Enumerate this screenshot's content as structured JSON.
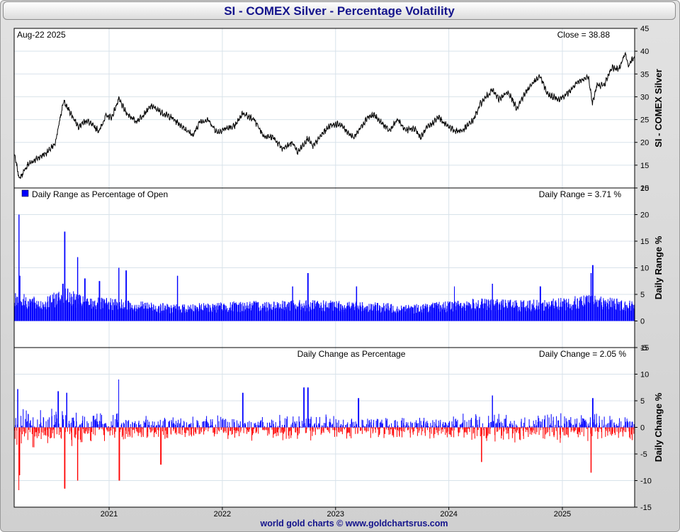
{
  "title": "SI  -  COMEX Silver - Percentage Volatility",
  "footer": "world gold charts © www.goldchartsrus.com",
  "colors": {
    "title": "#14148c",
    "price_line": "#000000",
    "range_bars": "#0000ff",
    "change_up": "#0000ff",
    "change_down": "#ff0000",
    "grid": "#d8e2ea"
  },
  "chart_data": [
    {
      "type": "line",
      "panel": "price",
      "date_label": "Aug-22  2025",
      "readout": "Close = 38.88",
      "ylabel": "SI  -  COMEX Silver",
      "ylim": [
        10,
        45
      ],
      "yticks": [
        10,
        15,
        20,
        25,
        30,
        35,
        40,
        45
      ],
      "xlim": [
        "2020-03-01",
        "2025-08-22"
      ],
      "xticks": [
        "2021",
        "2022",
        "2023",
        "2024",
        "2025"
      ],
      "grid": true,
      "series": [
        {
          "x": [
            "2020-03-01",
            "2020-03-18",
            "2020-04-15",
            "2020-05-15",
            "2020-06-15",
            "2020-07-10",
            "2020-07-28",
            "2020-08-07",
            "2020-08-25",
            "2020-09-24",
            "2020-10-20",
            "2020-11-30",
            "2020-12-21",
            "2021-01-10",
            "2021-02-01",
            "2021-02-25",
            "2021-03-30",
            "2021-05-18",
            "2021-06-20",
            "2021-07-20",
            "2021-08-19",
            "2021-09-29",
            "2021-10-20",
            "2021-11-15",
            "2021-12-15",
            "2022-01-10",
            "2022-02-10",
            "2022-03-08",
            "2022-04-15",
            "2022-05-13",
            "2022-06-15",
            "2022-07-14",
            "2022-08-15",
            "2022-09-01",
            "2022-10-04",
            "2022-10-20",
            "2022-11-15",
            "2022-12-15",
            "2023-01-15",
            "2023-02-28",
            "2023-04-14",
            "2023-05-05",
            "2023-06-23",
            "2023-07-20",
            "2023-08-15",
            "2023-09-15",
            "2023-10-02",
            "2023-10-20",
            "2023-11-30",
            "2023-12-20",
            "2024-01-22",
            "2024-02-15",
            "2024-03-21",
            "2024-04-12",
            "2024-05-20",
            "2024-06-10",
            "2024-07-11",
            "2024-08-07",
            "2024-08-27",
            "2024-09-20",
            "2024-10-22",
            "2024-11-14",
            "2024-12-20",
            "2025-01-15",
            "2025-02-14",
            "2025-03-26",
            "2025-04-08",
            "2025-04-22",
            "2025-05-15",
            "2025-06-10",
            "2025-06-30",
            "2025-07-23",
            "2025-08-01",
            "2025-08-22"
          ],
          "values": [
            17.5,
            12.0,
            15.2,
            16.5,
            17.8,
            19.5,
            25.5,
            29.0,
            27.0,
            23.5,
            24.8,
            22.5,
            25.8,
            25.5,
            29.5,
            26.5,
            24.5,
            28.0,
            26.5,
            25.5,
            23.8,
            21.5,
            24.5,
            25.0,
            22.2,
            23.0,
            23.5,
            26.5,
            24.8,
            21.5,
            21.0,
            18.5,
            20.0,
            17.8,
            21.0,
            19.0,
            21.5,
            23.8,
            24.0,
            21.0,
            25.5,
            26.0,
            22.5,
            25.0,
            22.7,
            23.0,
            21.0,
            23.0,
            25.5,
            24.0,
            22.5,
            22.6,
            25.0,
            28.5,
            31.5,
            29.5,
            31.0,
            27.5,
            30.0,
            32.5,
            34.5,
            30.5,
            29.5,
            30.5,
            32.8,
            34.5,
            28.5,
            32.5,
            32.5,
            36.5,
            36.0,
            39.5,
            36.8,
            38.88
          ]
        }
      ]
    },
    {
      "type": "bar",
      "panel": "range",
      "title": "Daily Range as Percentage of Open",
      "readout": "Daily Range = 3.71 %",
      "ylabel": "Daily Range %",
      "ylim": [
        -5,
        25
      ],
      "yticks": [
        -5,
        0,
        5,
        10,
        15,
        20,
        25
      ],
      "grid": true,
      "legend": [
        {
          "name": "Daily Range as Percentage of Open",
          "color": "#0000ff"
        }
      ],
      "typical_levels": [
        {
          "x": "2020-03-01",
          "value": 4.5
        },
        {
          "x": "2020-06-01",
          "value": 3.3
        },
        {
          "x": "2020-08-10",
          "value": 5.2
        },
        {
          "x": "2020-10-15",
          "value": 3.6
        },
        {
          "x": "2021-02-01",
          "value": 3.4
        },
        {
          "x": "2021-08-01",
          "value": 2.5
        },
        {
          "x": "2022-03-01",
          "value": 3.0
        },
        {
          "x": "2022-09-01",
          "value": 3.2
        },
        {
          "x": "2023-03-01",
          "value": 3.0
        },
        {
          "x": "2023-09-01",
          "value": 2.5
        },
        {
          "x": "2024-04-01",
          "value": 3.4
        },
        {
          "x": "2024-10-15",
          "value": 3.2
        },
        {
          "x": "2025-04-08",
          "value": 4.0
        },
        {
          "x": "2025-08-22",
          "value": 3.0
        }
      ],
      "peaks": [
        {
          "x": "2020-03-16",
          "value": 20.0
        },
        {
          "x": "2020-03-20",
          "value": 8.5
        },
        {
          "x": "2020-08-05",
          "value": 7.0
        },
        {
          "x": "2020-08-11",
          "value": 16.8
        },
        {
          "x": "2020-09-21",
          "value": 12.0
        },
        {
          "x": "2020-10-15",
          "value": 8.0
        },
        {
          "x": "2020-12-01",
          "value": 7.5
        },
        {
          "x": "2021-02-01",
          "value": 10.0
        },
        {
          "x": "2021-02-25",
          "value": 9.5
        },
        {
          "x": "2021-08-09",
          "value": 8.5
        },
        {
          "x": "2022-08-15",
          "value": 6.5
        },
        {
          "x": "2022-10-04",
          "value": 9.0
        },
        {
          "x": "2023-03-10",
          "value": 6.5
        },
        {
          "x": "2024-01-20",
          "value": 6.5
        },
        {
          "x": "2024-05-20",
          "value": 7.0
        },
        {
          "x": "2024-10-22",
          "value": 6.5
        },
        {
          "x": "2025-04-04",
          "value": 9.0
        },
        {
          "x": "2025-04-09",
          "value": 10.5
        }
      ]
    },
    {
      "type": "bar",
      "panel": "change",
      "title": "Daily Change as Percentage",
      "readout": "Daily Change = 2.05 %",
      "ylabel": "Daily Change %",
      "ylim": [
        -15,
        15
      ],
      "yticks": [
        -15,
        -10,
        -5,
        0,
        5,
        10,
        15
      ],
      "grid": true,
      "typical_levels": [
        {
          "x": "2020-03-01",
          "value": 3.2
        },
        {
          "x": "2020-08-10",
          "value": 3.5
        },
        {
          "x": "2021-02-01",
          "value": 2.4
        },
        {
          "x": "2021-08-01",
          "value": 2.0
        },
        {
          "x": "2022-09-01",
          "value": 2.3
        },
        {
          "x": "2023-09-01",
          "value": 1.8
        },
        {
          "x": "2024-04-01",
          "value": 2.4
        },
        {
          "x": "2025-04-08",
          "value": 2.6
        },
        {
          "x": "2025-08-22",
          "value": 2.2
        }
      ],
      "peaks": [
        {
          "x": "2020-03-13",
          "value": 7.2
        },
        {
          "x": "2020-03-16",
          "value": -11.8
        },
        {
          "x": "2020-03-18",
          "value": -9.0
        },
        {
          "x": "2020-07-21",
          "value": 6.8
        },
        {
          "x": "2020-08-11",
          "value": -11.5
        },
        {
          "x": "2020-08-17",
          "value": 6.5
        },
        {
          "x": "2020-09-21",
          "value": -10.0
        },
        {
          "x": "2021-02-01",
          "value": 9.0
        },
        {
          "x": "2021-02-03",
          "value": -10.0
        },
        {
          "x": "2021-06-17",
          "value": -7.0
        },
        {
          "x": "2022-03-08",
          "value": 6.5
        },
        {
          "x": "2022-09-21",
          "value": 7.5
        },
        {
          "x": "2022-10-04",
          "value": 7.5
        },
        {
          "x": "2023-03-16",
          "value": 5.5
        },
        {
          "x": "2024-04-15",
          "value": -6.5
        },
        {
          "x": "2024-05-20",
          "value": 6.0
        },
        {
          "x": "2025-04-04",
          "value": -8.5
        },
        {
          "x": "2025-04-09",
          "value": 5.5
        }
      ]
    }
  ]
}
